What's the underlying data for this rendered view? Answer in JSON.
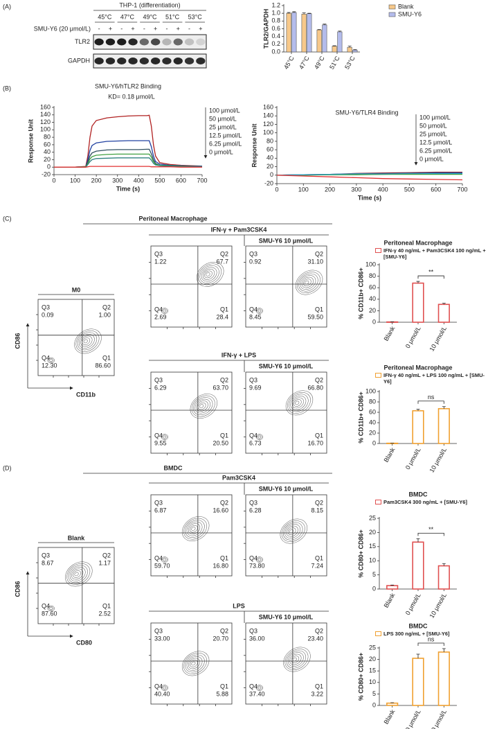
{
  "panels": [
    "(A)",
    "(B)",
    "(C)",
    "(D)"
  ],
  "blot": {
    "title": "THP-1 (differentiation)",
    "temperatures": [
      "45°C",
      "47°C",
      "49°C",
      "51°C",
      "53°C"
    ],
    "treatment": "SMU-Y6 (20 μmol/L)",
    "signs": [
      "-",
      "+"
    ],
    "rows": [
      "TLR2",
      "GAPDH"
    ]
  },
  "chart_data": [
    {
      "type": "bar",
      "ylabel": "TLR2/GAPDH",
      "categories": [
        "45°C",
        "47°C",
        "49°C",
        "51°C",
        "53°C"
      ],
      "series": [
        {
          "name": "Blank",
          "color": "#f7c88a",
          "values": [
            1.0,
            0.98,
            0.57,
            0.15,
            0.12
          ],
          "errors": [
            0.02,
            0.03,
            0.01,
            0.01,
            0.03
          ]
        },
        {
          "name": "SMU-Y6",
          "color": "#b4bcec",
          "values": [
            1.02,
            0.99,
            0.7,
            0.52,
            0.05
          ],
          "errors": [
            0.02,
            0.01,
            0.02,
            0.02,
            0.01
          ]
        }
      ],
      "ylim": [
        0,
        1.2
      ],
      "yticks": [
        {
          "value": 0,
          "label": "0.0"
        },
        0.2,
        0.4,
        0.6,
        0.8,
        {
          "value": 1,
          "label": "1.0"
        },
        1.2
      ],
      "legend": "upper right",
      "hollow": false
    },
    {
      "type": "line",
      "title": "SMU-Y6/hTLR2 Binding",
      "subtitle": "KD= 0.18 μmol/L",
      "xlabel": "Time (s)",
      "ylabel": "Response Unit",
      "x": [
        0,
        100,
        150,
        160,
        170,
        180,
        200,
        250,
        300,
        350,
        400,
        440,
        450,
        460,
        470,
        480,
        500,
        550,
        600,
        650,
        700
      ],
      "series": [
        {
          "name": "100 μmol/L",
          "color": "#b02020",
          "values": [
            0,
            0,
            2,
            30,
            80,
            110,
            125,
            132,
            135,
            137,
            138,
            138,
            139,
            110,
            60,
            30,
            12,
            7,
            5,
            4,
            3
          ]
        },
        {
          "name": "50 μmol/L",
          "color": "#2040a0",
          "values": [
            0,
            0,
            1,
            20,
            45,
            58,
            65,
            69,
            70,
            71,
            71,
            71,
            71,
            55,
            30,
            15,
            8,
            5,
            4,
            3,
            3
          ]
        },
        {
          "name": "25 μmol/L",
          "color": "#305060",
          "values": [
            0,
            0,
            1,
            14,
            30,
            38,
            43,
            46,
            47,
            47,
            47,
            48,
            48,
            36,
            20,
            10,
            5,
            4,
            3,
            3,
            2
          ]
        },
        {
          "name": "12.5 μmol/L",
          "color": "#40a040",
          "values": [
            0,
            0,
            1,
            10,
            22,
            28,
            32,
            34,
            35,
            35,
            35,
            35,
            35,
            27,
            15,
            8,
            5,
            4,
            3,
            2,
            2
          ]
        },
        {
          "name": "6.25 μmol/L",
          "color": "#308080",
          "values": [
            0,
            0,
            0,
            7,
            15,
            20,
            23,
            24,
            25,
            25,
            25,
            25,
            25,
            19,
            10,
            6,
            4,
            3,
            2,
            2,
            2
          ]
        },
        {
          "name": "0 μmol/L",
          "color": "#e03030",
          "values": [
            0,
            0,
            0,
            1,
            2,
            2,
            2,
            2,
            2,
            2,
            2,
            2,
            2,
            1,
            1,
            1,
            1,
            1,
            0,
            0,
            0
          ]
        }
      ],
      "xlim": [
        0,
        700
      ],
      "xticks": [
        0,
        100,
        200,
        300,
        400,
        500,
        600,
        700
      ],
      "ylim": [
        -20,
        160
      ],
      "yticks": [
        -20,
        0,
        20,
        40,
        60,
        80,
        100,
        120,
        140,
        160
      ]
    },
    {
      "type": "line",
      "title": "SMU-Y6/TLR4 Binding",
      "xlabel": "Time (s)",
      "ylabel": "Response Unit",
      "x": [
        0,
        100,
        200,
        300,
        400,
        500,
        600,
        700
      ],
      "series": [
        {
          "name": "100 μmol/L",
          "color": "#801830",
          "values": [
            0,
            1,
            2,
            4,
            5,
            6,
            7,
            7
          ]
        },
        {
          "name": "50 μmol/L",
          "color": "#2040a0",
          "values": [
            0,
            1,
            2,
            3,
            3,
            4,
            5,
            5
          ]
        },
        {
          "name": "25 μmol/L",
          "color": "#707070",
          "values": [
            0,
            1,
            1,
            2,
            2,
            3,
            3,
            3
          ]
        },
        {
          "name": "12.5 μmol/L",
          "color": "#40a040",
          "values": [
            0,
            0,
            1,
            1,
            2,
            2,
            2,
            2
          ]
        },
        {
          "name": "6.25 μmol/L",
          "color": "#30a0c0",
          "values": [
            0,
            1,
            2,
            3,
            3,
            4,
            4,
            4
          ]
        },
        {
          "name": "0 μmol/L",
          "color": "#e03030",
          "values": [
            0,
            -2,
            -4,
            -6,
            -8,
            -9,
            -10,
            -11
          ]
        }
      ],
      "xlim": [
        0,
        700
      ],
      "xticks": [
        0,
        100,
        200,
        300,
        400,
        500,
        600,
        700
      ],
      "ylim": [
        -20,
        160
      ],
      "yticks": [
        -20,
        0,
        20,
        40,
        60,
        80,
        100,
        120,
        140,
        160
      ]
    },
    {
      "type": "bar",
      "title": "Peritoneal Macrophage",
      "ylabel": "% CD11b+ CD86+",
      "categories": [
        "Blank",
        "0 μmol/L",
        "10 μmol/L"
      ],
      "series": [
        {
          "name": "IFN-γ 40 ng/mL + Pam3CSK4 100 ng/mL + [SMU-Y6]",
          "color": "#e05050",
          "values": [
            0.5,
            68,
            31
          ],
          "errors": [
            0.2,
            3,
            2
          ]
        }
      ],
      "ylim": [
        0,
        100
      ],
      "yticks": [
        0,
        20,
        40,
        60,
        80,
        100
      ],
      "legend": "top",
      "hollow": true,
      "annotation": "**"
    },
    {
      "type": "bar",
      "title": "Peritoneal Macrophage",
      "ylabel": "% CD11b+ CD86+",
      "categories": [
        "Blank",
        "0 μmol/L",
        "10 μmol/L"
      ],
      "series": [
        {
          "name": "IFN-γ 40 ng/mL + LPS 100 ng/mL + [SMU-Y6]",
          "color": "#f0a030",
          "values": [
            0.5,
            63,
            67
          ],
          "errors": [
            0.2,
            3,
            4
          ]
        }
      ],
      "ylim": [
        0,
        100
      ],
      "yticks": [
        0,
        20,
        40,
        60,
        80,
        100
      ],
      "legend": "top",
      "hollow": true,
      "annotation": "ns"
    },
    {
      "type": "bar",
      "title": "BMDC",
      "ylabel": "% CD80+ CD86+",
      "categories": [
        "Blank",
        "0 μmol/L",
        "10 μmol/L"
      ],
      "series": [
        {
          "name": "Pam3CSK4 300 ng/mL + [SMU-Y6]",
          "color": "#e05050",
          "values": [
            1.2,
            16.6,
            8.2
          ],
          "errors": [
            0.2,
            1.2,
            0.8
          ]
        }
      ],
      "ylim": [
        0,
        25
      ],
      "yticks": [
        0,
        5,
        10,
        15,
        20,
        25
      ],
      "legend": "top",
      "hollow": true,
      "annotation": "**"
    },
    {
      "type": "bar",
      "title": "BMDC",
      "ylabel": "% CD80+ CD86+",
      "categories": [
        "Blank",
        "0 μmol/L",
        "10 μmol/L"
      ],
      "series": [
        {
          "name": "LPS 300 ng/mL + [SMU-Y6]",
          "color": "#f0a030",
          "values": [
            1.0,
            20.5,
            23.2
          ],
          "errors": [
            0.2,
            1.8,
            1.5
          ]
        }
      ],
      "ylim": [
        0,
        25
      ],
      "yticks": [
        0,
        5,
        10,
        15,
        20,
        25
      ],
      "legend": "top",
      "hollow": true,
      "annotation": "ns"
    }
  ],
  "flow": [
    {
      "title": "Peritoneal Macrophage",
      "y_axis": "CD86",
      "x_axis": "CD11b",
      "baseline": {
        "label": "M0",
        "quadrants": [
          {
            "name": "Q3",
            "value": "0.09"
          },
          {
            "name": "Q2",
            "value": "1.00"
          },
          {
            "name": "Q4",
            "value": "12.30"
          },
          {
            "name": "Q1",
            "value": "86.60"
          }
        ]
      },
      "groups": [
        {
          "label": "IFN-γ + Pam3CSK4",
          "treatment": "SMU-Y6 10 μmol/L",
          "plots": [
            [
              {
                "name": "Q3",
                "value": "1.22"
              },
              {
                "name": "Q2",
                "value": "67.7"
              },
              {
                "name": "Q4",
                "value": "2.69"
              },
              {
                "name": "Q1",
                "value": "28.4"
              }
            ],
            [
              {
                "name": "Q3",
                "value": "0.92"
              },
              {
                "name": "Q2",
                "value": "31.10"
              },
              {
                "name": "Q4",
                "value": "8.45"
              },
              {
                "name": "Q1",
                "value": "59.50"
              }
            ]
          ]
        },
        {
          "label": "IFN-γ + LPS",
          "treatment": "SMU-Y6 10 μmol/L",
          "plots": [
            [
              {
                "name": "Q3",
                "value": "6.29"
              },
              {
                "name": "Q2",
                "value": "63.70"
              },
              {
                "name": "Q4",
                "value": "9.55"
              },
              {
                "name": "Q1",
                "value": "20.50"
              }
            ],
            [
              {
                "name": "Q3",
                "value": "9.69"
              },
              {
                "name": "Q2",
                "value": "66.80"
              },
              {
                "name": "Q4",
                "value": "6.73"
              },
              {
                "name": "Q1",
                "value": "16.70"
              }
            ]
          ]
        }
      ]
    },
    {
      "title": "BMDC",
      "y_axis": "CD86",
      "x_axis": "CD80",
      "baseline": {
        "label": "Blank",
        "quadrants": [
          {
            "name": "Q3",
            "value": "8.67"
          },
          {
            "name": "Q2",
            "value": "1.17"
          },
          {
            "name": "Q4",
            "value": "87.60"
          },
          {
            "name": "Q1",
            "value": "2.52"
          }
        ]
      },
      "groups": [
        {
          "label": "Pam3CSK4",
          "treatment": "SMU-Y6 10 μmol/L",
          "plots": [
            [
              {
                "name": "Q3",
                "value": "6.87"
              },
              {
                "name": "Q2",
                "value": "16.60"
              },
              {
                "name": "Q4",
                "value": "59.70"
              },
              {
                "name": "Q1",
                "value": "16.80"
              }
            ],
            [
              {
                "name": "Q3",
                "value": "6.28"
              },
              {
                "name": "Q2",
                "value": "8.15"
              },
              {
                "name": "Q4",
                "value": "73.80"
              },
              {
                "name": "Q1",
                "value": "7.24"
              }
            ]
          ]
        },
        {
          "label": "LPS",
          "treatment": "SMU-Y6 10 μmol/L",
          "plots": [
            [
              {
                "name": "Q3",
                "value": "33.00"
              },
              {
                "name": "Q2",
                "value": "20.70"
              },
              {
                "name": "Q4",
                "value": "40.40"
              },
              {
                "name": "Q1",
                "value": "5.88"
              }
            ],
            [
              {
                "name": "Q3",
                "value": "36.00"
              },
              {
                "name": "Q2",
                "value": "23.40"
              },
              {
                "name": "Q4",
                "value": "37.40"
              },
              {
                "name": "Q1",
                "value": "3.22"
              }
            ]
          ]
        }
      ]
    }
  ]
}
